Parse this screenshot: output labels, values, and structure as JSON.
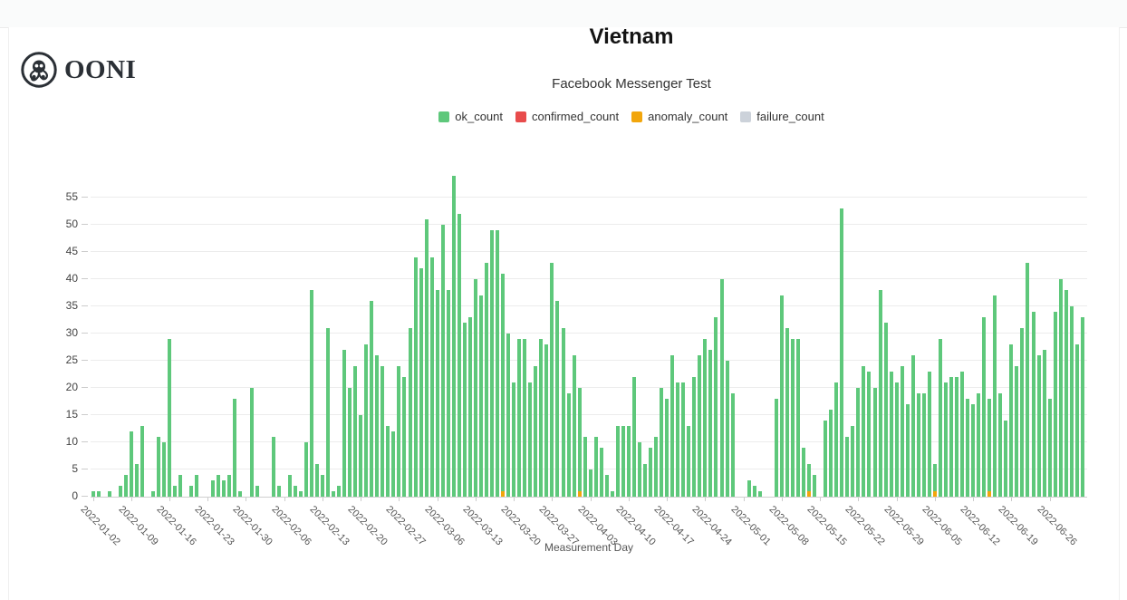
{
  "brand": {
    "name": "OONI"
  },
  "header": {
    "title": "Vietnam",
    "subtitle": "Facebook Messenger Test"
  },
  "legend": [
    {
      "label": "ok_count",
      "color": "#5ec87b"
    },
    {
      "label": "confirmed_count",
      "color": "#e84c4c"
    },
    {
      "label": "anomaly_count",
      "color": "#f2a60c"
    },
    {
      "label": "failure_count",
      "color": "#ccd2da"
    }
  ],
  "chart_data": {
    "type": "bar",
    "stacked": true,
    "title": "Vietnam",
    "subtitle": "Facebook Messenger Test",
    "xlabel": "Measurement Day",
    "ylabel": "",
    "ylim": [
      0,
      59
    ],
    "grid": true,
    "legend_position": "top",
    "start_date": "2022-01-02",
    "end_date": "2022-07-02",
    "y_ticks": [
      0,
      5,
      10,
      15,
      20,
      25,
      30,
      35,
      40,
      45,
      50,
      55
    ],
    "x_tick_labels": [
      "2022-01-02",
      "2022-01-09",
      "2022-01-16",
      "2022-01-23",
      "2022-01-30",
      "2022-02-06",
      "2022-02-13",
      "2022-02-20",
      "2022-02-27",
      "2022-03-06",
      "2022-03-13",
      "2022-03-20",
      "2022-03-27",
      "2022-04-03",
      "2022-04-10",
      "2022-04-17",
      "2022-04-24",
      "2022-05-01",
      "2022-05-08",
      "2022-05-15",
      "2022-05-22",
      "2022-05-29",
      "2022-06-05",
      "2022-06-12",
      "2022-06-19",
      "2022-06-26"
    ],
    "series": [
      {
        "name": "ok_count",
        "color": "#5ec87b",
        "values": [
          1,
          1,
          0,
          1,
          0,
          2,
          4,
          12,
          6,
          13,
          0,
          1,
          11,
          10,
          29,
          2,
          4,
          0,
          2,
          4,
          0,
          0,
          3,
          4,
          3,
          4,
          18,
          1,
          0,
          20,
          2,
          0,
          0,
          11,
          2,
          0,
          4,
          2,
          1,
          10,
          38,
          6,
          4,
          31,
          1,
          2,
          27,
          20,
          24,
          15,
          28,
          36,
          26,
          24,
          13,
          12,
          24,
          22,
          31,
          44,
          42,
          51,
          44,
          38,
          50,
          38,
          59,
          52,
          32,
          33,
          40,
          37,
          43,
          49,
          49,
          40,
          30,
          21,
          29,
          29,
          21,
          24,
          29,
          28,
          43,
          36,
          31,
          19,
          26,
          19,
          11,
          5,
          11,
          9,
          4,
          1,
          13,
          13,
          13,
          22,
          10,
          6,
          9,
          11,
          20,
          18,
          26,
          21,
          21,
          13,
          22,
          26,
          29,
          27,
          33,
          40,
          25,
          19,
          0,
          0,
          3,
          2,
          1,
          0,
          0,
          18,
          37,
          31,
          29,
          29,
          9,
          5,
          4,
          0,
          14,
          16,
          21,
          53,
          11,
          13,
          20,
          24,
          23,
          20,
          38,
          32,
          23,
          21,
          24,
          17,
          26,
          19,
          19,
          23,
          5,
          29,
          21,
          22,
          22,
          23,
          18,
          17,
          19,
          33,
          17,
          37,
          19,
          14,
          28,
          24,
          31,
          43,
          34,
          26,
          27,
          18,
          34,
          40,
          38,
          35,
          28,
          33
        ]
      },
      {
        "name": "confirmed_count",
        "color": "#e84c4c",
        "all_values_zero": true
      },
      {
        "name": "anomaly_count",
        "color": "#f2a60c",
        "anomaly_days": {
          "2022-03-18": 1,
          "2022-04-01": 1,
          "2022-05-13": 1,
          "2022-06-05": 1,
          "2022-06-15": 1
        },
        "anomaly_indices": {
          "75": 1,
          "89": 1,
          "131": 1,
          "154": 1,
          "164": 1
        }
      },
      {
        "name": "failure_count",
        "color": "#ccd2da",
        "all_values_zero": true
      }
    ]
  },
  "layout_note": "daily stacked bars, anomaly segment drawn at bar base"
}
